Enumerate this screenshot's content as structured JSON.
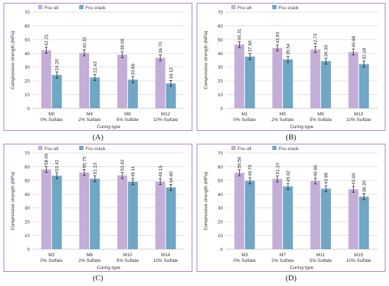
{
  "colors": {
    "ult": "#c4aed8",
    "crack": "#6fa7c4",
    "frame": "#a884c4",
    "grid": "#d9d9d9"
  },
  "chart_data": [
    {
      "type": "bar",
      "panel_label": "(A)",
      "categories": [
        "M0",
        "M4",
        "M8",
        "M12"
      ],
      "category_sublabels": [
        "0% Sulfate",
        "2% Sulfate",
        "5% Sulfate",
        "10% Sulfate"
      ],
      "series": [
        {
          "name": "Fcu ult",
          "values": [
            42.21,
            40.32,
            39.0,
            36.7
          ],
          "labels": [
            "42.21",
            "40.32",
            "39.00",
            "36.70"
          ]
        },
        {
          "name": "Fcu crack",
          "values": [
            24.2,
            22.43,
            20.86,
            18.12
          ],
          "labels": [
            "24.20",
            "22.43",
            "20.86",
            "18.12"
          ]
        }
      ],
      "xlabel": "Curing type",
      "ylabel": "Compressive strength (MPa)",
      "ylim": [
        0,
        70
      ],
      "yticks": [
        0,
        10,
        20,
        30,
        40,
        50,
        60,
        70
      ],
      "grid": true,
      "legend": "top-left"
    },
    {
      "type": "bar",
      "panel_label": "(B)",
      "categories": [
        "M1",
        "M5",
        "M9",
        "M13"
      ],
      "category_sublabels": [
        "0% Sulfate",
        "2% Sulfate",
        "5% Sulfate",
        "10% Sulfate"
      ],
      "series": [
        {
          "name": "Fcu ult",
          "values": [
            46.31,
            43.93,
            42.73,
            40.98
          ],
          "labels": [
            "46.31",
            "43.93",
            "42.73",
            "40.98"
          ]
        },
        {
          "name": "Fcu crack",
          "values": [
            37.6,
            35.54,
            34.3,
            32.18
          ],
          "labels": [
            "37.60",
            "35.54",
            "34.30",
            "32.18"
          ]
        }
      ],
      "xlabel": "Curing type",
      "ylabel": "Compressive strength (MPa)",
      "ylim": [
        0,
        70
      ],
      "yticks": [
        0,
        10,
        20,
        30,
        40,
        50,
        60,
        70
      ],
      "grid": true,
      "legend": "top-left"
    },
    {
      "type": "bar",
      "panel_label": "(C)",
      "categories": [
        "M2",
        "M6",
        "M10",
        "M14"
      ],
      "category_sublabels": [
        "0% Sulfate",
        "2% Sulfate",
        "5% Sulfate",
        "10% Sulfate"
      ],
      "series": [
        {
          "name": "Fcu ult",
          "values": [
            58.0,
            55.75,
            53.62,
            49.15
          ],
          "labels": [
            "58.00",
            "55.75",
            "53.62",
            "49.15"
          ]
        },
        {
          "name": "Fcu crack",
          "values": [
            53.42,
            51.23,
            49.11,
            44.9
          ],
          "labels": [
            "53.42",
            "51.23",
            "49.11",
            "44.90"
          ]
        }
      ],
      "xlabel": "Curing type",
      "ylabel": "Compressive strength (MPa)",
      "ylim": [
        0,
        70
      ],
      "yticks": [
        0,
        10,
        20,
        30,
        40,
        50,
        60,
        70
      ],
      "grid": true,
      "legend": "top-left"
    },
    {
      "type": "bar",
      "panel_label": "(D)",
      "categories": [
        "M3",
        "M7",
        "M11",
        "M15"
      ],
      "category_sublabels": [
        "0% Sulfate",
        "2% Sulfate",
        "5% Sulfate",
        "10% Sulfate"
      ],
      "series": [
        {
          "name": "Fcu ult",
          "values": [
            55.56,
            51.1,
            49.6,
            43.6
          ],
          "labels": [
            "55.56",
            "51.10",
            "49.60",
            "43.60"
          ]
        },
        {
          "name": "Fcu crack",
          "values": [
            49.7,
            45.62,
            43.98,
            38.2
          ],
          "labels": [
            "49.70",
            "45.62",
            "43.98",
            "38.20"
          ]
        }
      ],
      "xlabel": "Curing type",
      "ylabel": "Compressive strength (MPa)",
      "ylim": [
        0,
        70
      ],
      "yticks": [
        0,
        10,
        20,
        30,
        40,
        50,
        60,
        70
      ],
      "grid": true,
      "legend": "top-left"
    }
  ]
}
